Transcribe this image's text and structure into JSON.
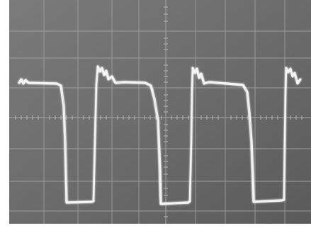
{
  "photo": {
    "subject": "oscilloscope-trace",
    "colors": {
      "border": "#ffffff",
      "screen": "#6f6f6f",
      "screen_dark": "#5d5d5d",
      "graticule": "#a9a9a9",
      "trace": "#f2f2f2",
      "trace_glow": "#d7d7d7"
    }
  }
}
